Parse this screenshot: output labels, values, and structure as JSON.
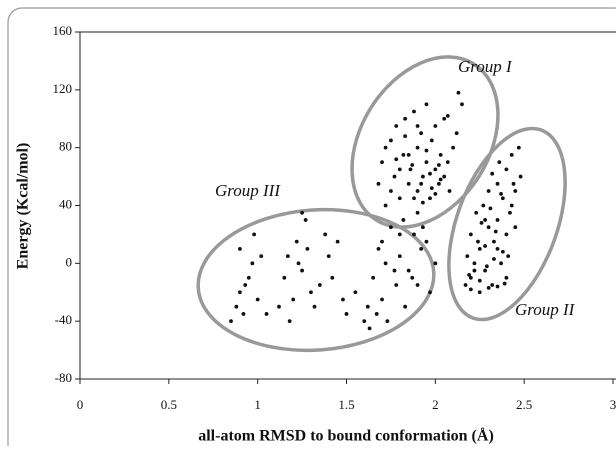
{
  "chart_data": {
    "type": "scatter",
    "xlabel": "all-atom RMSD to bound conformation (Å)",
    "ylabel": "Energy (Kcal/mol)",
    "annotations": [
      "Group I",
      "Group II",
      "Group III"
    ],
    "color": "#111111",
    "xlim": [
      0,
      3
    ],
    "xticks": [
      0,
      0.5,
      1,
      1.5,
      2,
      2.5,
      3
    ],
    "ylim": [
      -80,
      160
    ],
    "yticks": [
      -80,
      -40,
      0,
      40,
      80,
      120,
      160
    ],
    "grid": false,
    "x": [
      0.85,
      0.88,
      0.9,
      0.92,
      0.95,
      0.97,
      1.0,
      1.02,
      0.9,
      0.93,
      0.98,
      1.05,
      1.12,
      1.15,
      1.17,
      1.2,
      1.22,
      1.25,
      1.27,
      1.3,
      1.18,
      1.23,
      1.28,
      1.32,
      1.35,
      1.38,
      1.4,
      1.42,
      1.45,
      1.48,
      1.5,
      1.55,
      1.6,
      1.62,
      1.65,
      1.68,
      1.7,
      1.72,
      1.75,
      1.78,
      1.8,
      1.82,
      1.85,
      1.88,
      1.9,
      1.92,
      1.95,
      1.97,
      2.0,
      1.63,
      1.67,
      1.73,
      1.77,
      1.83,
      1.87,
      1.93,
      1.7,
      1.8,
      1.9,
      1.25,
      1.68,
      1.7,
      1.72,
      1.75,
      1.77,
      1.78,
      1.8,
      1.82,
      1.83,
      1.85,
      1.86,
      1.88,
      1.9,
      1.9,
      1.92,
      1.93,
      1.95,
      1.95,
      1.97,
      1.98,
      2.0,
      2.0,
      2.02,
      2.03,
      2.05,
      2.05,
      2.07,
      2.08,
      2.1,
      2.12,
      1.75,
      1.8,
      1.85,
      1.88,
      1.92,
      1.97,
      2.0,
      2.03,
      1.9,
      1.95,
      1.87,
      1.83,
      2.07,
      2.13,
      2.15,
      1.78,
      1.93,
      1.98,
      2.02,
      1.72,
      2.17,
      2.18,
      2.2,
      2.2,
      2.22,
      2.23,
      2.25,
      2.25,
      2.27,
      2.28,
      2.3,
      2.3,
      2.32,
      2.33,
      2.35,
      2.35,
      2.37,
      2.38,
      2.4,
      2.4,
      2.42,
      2.43,
      2.45,
      2.45,
      2.47,
      2.48,
      2.2,
      2.25,
      2.3,
      2.35,
      2.4,
      2.22,
      2.28,
      2.33,
      2.38,
      2.43,
      2.26,
      2.31,
      2.36,
      2.41,
      2.19,
      2.24,
      2.29,
      2.34,
      2.39,
      2.44,
      2.32,
      2.37,
      2.28,
      2.35
    ],
    "values": [
      -40,
      -30,
      -20,
      -35,
      -10,
      0,
      -25,
      5,
      10,
      -15,
      20,
      -35,
      -30,
      -10,
      5,
      -25,
      15,
      -5,
      30,
      -20,
      -40,
      0,
      10,
      -30,
      -15,
      20,
      5,
      -10,
      15,
      -25,
      -35,
      -20,
      -40,
      -30,
      -10,
      10,
      -25,
      0,
      25,
      -15,
      5,
      30,
      -5,
      20,
      35,
      10,
      15,
      -20,
      0,
      -45,
      -35,
      -40,
      -5,
      -30,
      -10,
      25,
      15,
      20,
      -15,
      35,
      55,
      70,
      40,
      85,
      60,
      95,
      45,
      75,
      100,
      55,
      65,
      105,
      80,
      50,
      90,
      60,
      110,
      70,
      45,
      85,
      65,
      95,
      55,
      75,
      60,
      100,
      70,
      50,
      80,
      90,
      50,
      65,
      75,
      45,
      55,
      62,
      48,
      58,
      95,
      78,
      68,
      88,
      102,
      118,
      110,
      72,
      42,
      52,
      68,
      80,
      -15,
      5,
      -10,
      20,
      0,
      35,
      -20,
      10,
      40,
      -5,
      25,
      50,
      -15,
      15,
      55,
      30,
      0,
      45,
      20,
      65,
      35,
      75,
      50,
      25,
      80,
      60,
      -18,
      -12,
      -17,
      -16,
      -10,
      -5,
      12,
      3,
      8,
      40,
      28,
      38,
      70,
      5,
      -8,
      15,
      -2,
      22,
      -14,
      55,
      62,
      48,
      30,
      10
    ]
  }
}
